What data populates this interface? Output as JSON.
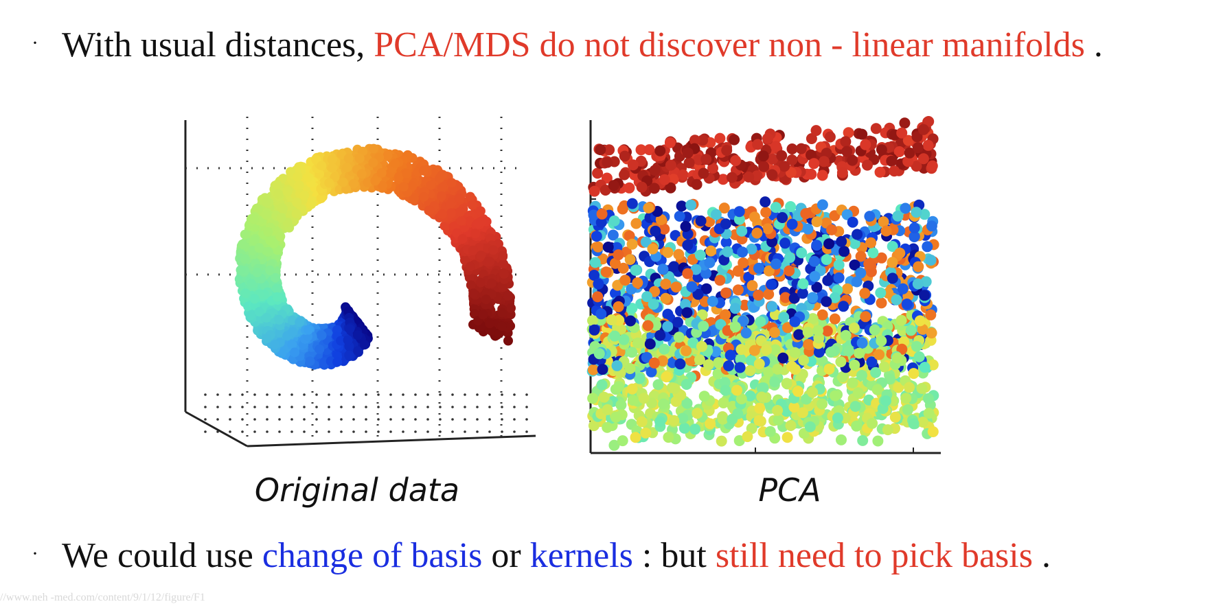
{
  "bullet1": {
    "marker": "·",
    "part1": "With usual distances, ",
    "part2": "PCA/MDS do not discover non - linear manifolds",
    "part3": " ."
  },
  "bullet2": {
    "marker": "·",
    "part1": "We could use ",
    "part2": "change of basis",
    "part3": " or ",
    "part4": "kernels",
    "part5": " : but ",
    "part6": "still need to pick basis",
    "part7": " ."
  },
  "figure": {
    "left_caption": "Original data",
    "right_caption": "PCA"
  },
  "source_text": "//www.neh -med.com/content/9/1/12/figure/F1",
  "colors": {
    "highlight_red": "#e03a2a",
    "highlight_blue": "#1a2ee0",
    "colormap": [
      "#7a0c0c",
      "#e03a2a",
      "#f07a20",
      "#f4e040",
      "#a8f070",
      "#5ce8c0",
      "#3aa0f0",
      "#1040e0",
      "#08088a"
    ]
  }
}
